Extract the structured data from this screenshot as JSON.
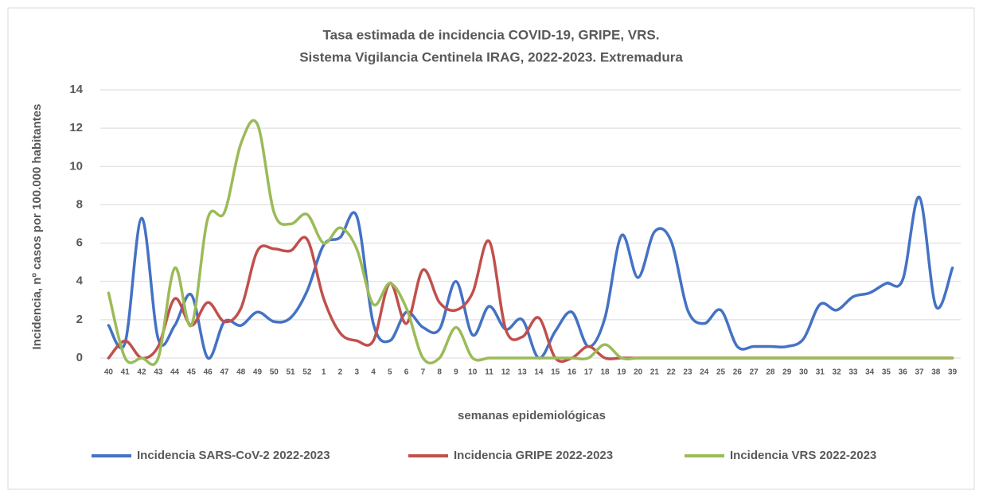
{
  "chart_data": {
    "type": "line",
    "title": "Tasa estimada de incidencia COVID-19, GRIPE, VRS.",
    "subtitle": "Sistema Vigilancia Centinela IRAG, 2022-2023. Extremadura",
    "x_label": "semanas epidemiológicas",
    "y_label": "Incidencia, nº casos por 100.000 habitantes",
    "categories": [
      "40",
      "41",
      "42",
      "43",
      "44",
      "45",
      "46",
      "47",
      "48",
      "49",
      "50",
      "51",
      "52",
      "1",
      "2",
      "3",
      "4",
      "5",
      "6",
      "7",
      "8",
      "9",
      "10",
      "11",
      "12",
      "13",
      "14",
      "15",
      "16",
      "17",
      "18",
      "19",
      "20",
      "21",
      "22",
      "23",
      "24",
      "25",
      "26",
      "27",
      "28",
      "29",
      "30",
      "31",
      "32",
      "33",
      "34",
      "35",
      "36",
      "37",
      "38",
      "39"
    ],
    "series": [
      {
        "name": "Incidencia SARS-CoV-2 2022-2023",
        "color": "#4472c4",
        "values": [
          1.7,
          0.8,
          7.3,
          1.0,
          1.7,
          3.3,
          0,
          1.9,
          1.7,
          2.4,
          1.9,
          2.1,
          3.5,
          5.9,
          6.3,
          7.4,
          1.8,
          0.9,
          2.4,
          1.6,
          1.5,
          4.0,
          1.2,
          2.7,
          1.5,
          2.0,
          0,
          1.4,
          2.4,
          0.6,
          2.1,
          6.4,
          4.2,
          6.6,
          6.1,
          2.5,
          1.8,
          2.5,
          0.6,
          0.6,
          0.6,
          0.6,
          1.0,
          2.8,
          2.5,
          3.2,
          3.4,
          3.9,
          4.1,
          8.4,
          2.7,
          4.7
        ]
      },
      {
        "name": "Incidencia GRIPE 2022-2023",
        "color": "#c0504d",
        "values": [
          0,
          0.9,
          0,
          0.6,
          3.1,
          1.7,
          2.9,
          1.9,
          2.6,
          5.6,
          5.7,
          5.6,
          6.2,
          3.1,
          1.3,
          0.9,
          0.9,
          3.9,
          1.8,
          4.6,
          2.9,
          2.5,
          3.4,
          6.1,
          1.5,
          1.1,
          2.1,
          0,
          0,
          0.6,
          0,
          0,
          0,
          0,
          0,
          0,
          0,
          0,
          0,
          0,
          0,
          0,
          0,
          0,
          0,
          0,
          0,
          0,
          0,
          0,
          0,
          0
        ]
      },
      {
        "name": "Incidencia VRS 2022-2023",
        "color": "#9bbb59",
        "values": [
          3.4,
          0,
          0,
          0,
          4.7,
          1.7,
          7.3,
          7.6,
          11.2,
          12.2,
          7.6,
          7.0,
          7.5,
          6.0,
          6.8,
          5.7,
          2.8,
          3.9,
          2.6,
          0,
          0,
          1.6,
          0,
          0,
          0,
          0,
          0,
          0,
          0,
          0,
          0.7,
          0,
          0,
          0,
          0,
          0,
          0,
          0,
          0,
          0,
          0,
          0,
          0,
          0,
          0,
          0,
          0,
          0,
          0,
          0,
          0,
          0
        ]
      }
    ],
    "ylim": [
      0,
      14
    ],
    "yticks": [
      0,
      2,
      4,
      6,
      8,
      10,
      12,
      14
    ],
    "grid": true
  }
}
